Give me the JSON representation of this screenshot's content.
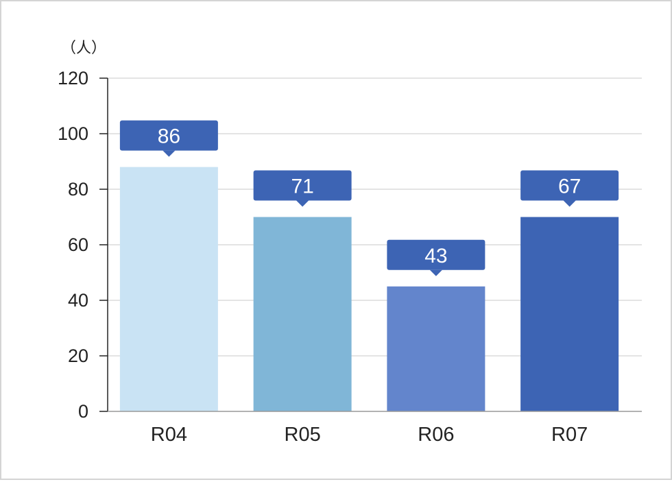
{
  "chart_data": {
    "type": "bar",
    "title": "",
    "xlabel": "",
    "ylabel": "",
    "unit_label": "（人）",
    "categories": [
      "R04",
      "R05",
      "R06",
      "R07"
    ],
    "values": [
      86,
      71,
      43,
      67
    ],
    "bar_heights": [
      88,
      70,
      45,
      70
    ],
    "ylim": [
      0,
      120
    ],
    "yticks": [
      0,
      20,
      40,
      60,
      80,
      100,
      120
    ],
    "grid": true,
    "legend": "none",
    "bar_colors": [
      "#c9e3f4",
      "#80b6d7",
      "#6385cc",
      "#3d64b4"
    ],
    "label_box_color": "#3d64b4"
  }
}
